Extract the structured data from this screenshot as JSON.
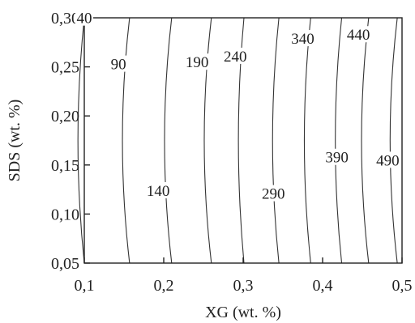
{
  "chart_data": {
    "type": "contour",
    "xlabel": "XG (wt. %)",
    "ylabel": "SDS (wt. %)",
    "xlim": [
      0.1,
      0.5
    ],
    "ylim": [
      0.05,
      0.3
    ],
    "x_ticks": [
      {
        "value": 0.1,
        "label": "0,1"
      },
      {
        "value": 0.2,
        "label": "0,2"
      },
      {
        "value": 0.3,
        "label": "0,3"
      },
      {
        "value": 0.4,
        "label": "0,4"
      },
      {
        "value": 0.5,
        "label": "0,5"
      }
    ],
    "y_ticks": [
      {
        "value": 0.05,
        "label": "0,05"
      },
      {
        "value": 0.1,
        "label": "0,10"
      },
      {
        "value": 0.15,
        "label": "0,15"
      },
      {
        "value": 0.2,
        "label": "0,20"
      },
      {
        "value": 0.25,
        "label": "0,25"
      },
      {
        "value": 0.3,
        "label": "0,30"
      }
    ],
    "contours": [
      {
        "level": 40,
        "label": "40",
        "x_at_ymin": 0.1,
        "x_at_ymid": 0.092,
        "x_at_ymax": 0.1,
        "label_x": 0.1,
        "label_y": 0.297
      },
      {
        "level": 90,
        "label": "90",
        "x_at_ymin": 0.157,
        "x_at_ymid": 0.148,
        "x_at_ymax": 0.157,
        "label_x": 0.143,
        "label_y": 0.25
      },
      {
        "level": 140,
        "label": "140",
        "x_at_ymin": 0.21,
        "x_at_ymid": 0.201,
        "x_at_ymax": 0.21,
        "label_x": 0.193,
        "label_y": 0.121
      },
      {
        "level": 190,
        "label": "190",
        "x_at_ymin": 0.26,
        "x_at_ymid": 0.251,
        "x_at_ymax": 0.26,
        "label_x": 0.242,
        "label_y": 0.252
      },
      {
        "level": 240,
        "label": "240",
        "x_at_ymin": 0.301,
        "x_at_ymid": 0.294,
        "x_at_ymax": 0.301,
        "label_x": 0.29,
        "label_y": 0.258
      },
      {
        "level": 290,
        "label": "290",
        "x_at_ymin": 0.345,
        "x_at_ymid": 0.337,
        "x_at_ymax": 0.345,
        "label_x": 0.338,
        "label_y": 0.118
      },
      {
        "level": 340,
        "label": "340",
        "x_at_ymin": 0.385,
        "x_at_ymid": 0.377,
        "x_at_ymax": 0.385,
        "label_x": 0.375,
        "label_y": 0.276
      },
      {
        "level": 390,
        "label": "390",
        "x_at_ymin": 0.424,
        "x_at_ymid": 0.416,
        "x_at_ymax": 0.424,
        "label_x": 0.418,
        "label_y": 0.155
      },
      {
        "level": 440,
        "label": "440",
        "x_at_ymin": 0.458,
        "x_at_ymid": 0.449,
        "x_at_ymax": 0.458,
        "label_x": 0.445,
        "label_y": 0.28
      },
      {
        "level": 490,
        "label": "490",
        "x_at_ymin": 0.494,
        "x_at_ymid": 0.485,
        "x_at_ymax": 0.494,
        "label_x": 0.482,
        "label_y": 0.152
      }
    ]
  }
}
